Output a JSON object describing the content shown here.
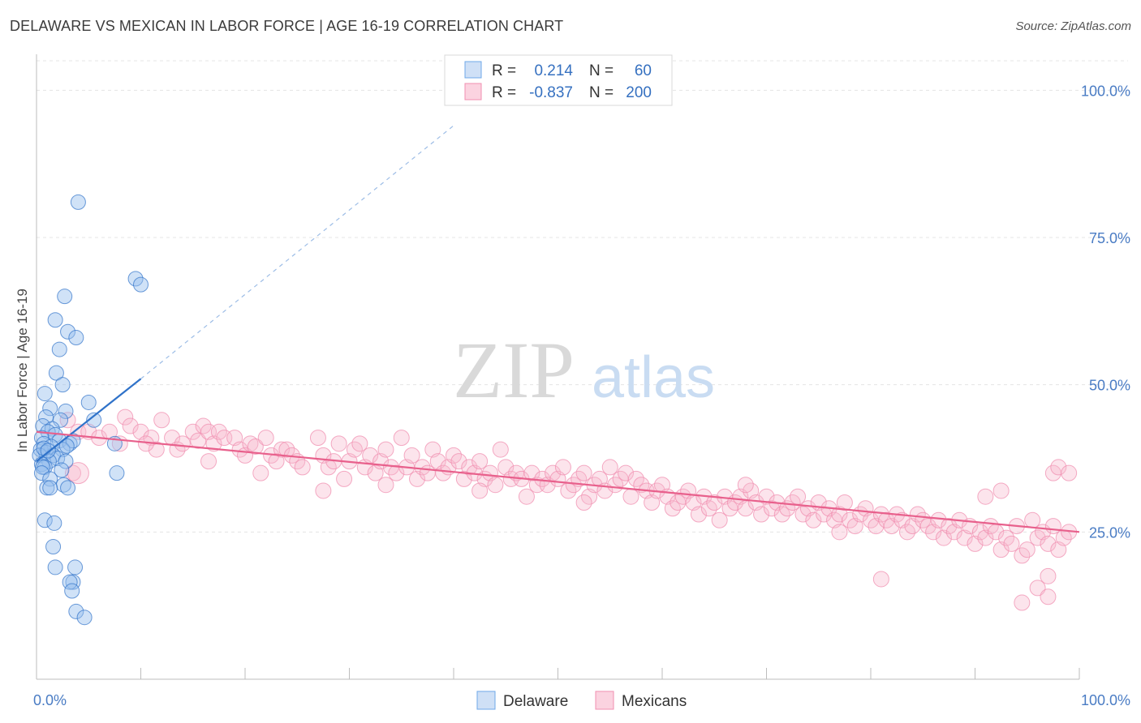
{
  "title": "DELAWARE VS MEXICAN IN LABOR FORCE | AGE 16-19 CORRELATION CHART",
  "source": "Source: ZipAtlas.com",
  "watermark": {
    "zip": "ZIP",
    "atlas": "atlas"
  },
  "colors": {
    "delaware": "#6fa8e8",
    "delaware_line": "#2f72c9",
    "mexicans": "#f08fb0",
    "mexicans_line": "#e8608c",
    "axis_labels": "#4a7cc4"
  },
  "legend_top": [
    {
      "r_label": "R =",
      "r_value": "0.214",
      "n_label": "N =",
      "n_value": "60"
    },
    {
      "r_label": "R =",
      "r_value": "-0.837",
      "n_label": "N =",
      "n_value": "200"
    }
  ],
  "chart_data": {
    "type": "scatter",
    "title": "DELAWARE VS MEXICAN IN LABOR FORCE | AGE 16-19 CORRELATION CHART",
    "xlabel": "",
    "ylabel": "In Labor Force | Age 16-19",
    "xlim": [
      0,
      100
    ],
    "ylim": [
      0,
      105
    ],
    "x_tick_labels": [
      "0.0%",
      "100.0%"
    ],
    "y_tick_labels": [
      "25.0%",
      "50.0%",
      "75.0%",
      "100.0%"
    ],
    "y_ticks": [
      25,
      50,
      75,
      100
    ],
    "grid": true,
    "legend_position": "bottom",
    "series": [
      {
        "name": "Delaware",
        "r": 0.214,
        "n": 60,
        "trend": {
          "x0": 0,
          "y0": 37.0,
          "x1": 10,
          "y1": 51.0,
          "extended_to_x": 40,
          "extended_to_y": 94
        },
        "points": [
          [
            4,
            81
          ],
          [
            9.5,
            68
          ],
          [
            10,
            67
          ],
          [
            2.7,
            65
          ],
          [
            1.8,
            61
          ],
          [
            3,
            59
          ],
          [
            3.8,
            58
          ],
          [
            2.2,
            56
          ],
          [
            1.9,
            52
          ],
          [
            2.5,
            50
          ],
          [
            0.8,
            48.5
          ],
          [
            5,
            47
          ],
          [
            1.3,
            46
          ],
          [
            2.8,
            45.5
          ],
          [
            0.9,
            44.5
          ],
          [
            2.3,
            44
          ],
          [
            5.5,
            44
          ],
          [
            0.6,
            43
          ],
          [
            1.5,
            42.5
          ],
          [
            1.1,
            42
          ],
          [
            0.5,
            41
          ],
          [
            1.8,
            41.5
          ],
          [
            2.2,
            40.5
          ],
          [
            3.2,
            40
          ],
          [
            0.7,
            40
          ],
          [
            3.5,
            40.5
          ],
          [
            1.4,
            39.5
          ],
          [
            7.5,
            40
          ],
          [
            0.4,
            39
          ],
          [
            2.5,
            39
          ],
          [
            0.9,
            38.5
          ],
          [
            1.6,
            38
          ],
          [
            0.3,
            38
          ],
          [
            2,
            37.5
          ],
          [
            1.2,
            37
          ],
          [
            0.5,
            36.5
          ],
          [
            2.8,
            37
          ],
          [
            0.8,
            36
          ],
          [
            0.6,
            36
          ],
          [
            7.7,
            35
          ],
          [
            2.4,
            35.5
          ],
          [
            0.5,
            35
          ],
          [
            1.3,
            34
          ],
          [
            2.6,
            33
          ],
          [
            3,
            32.5
          ],
          [
            1,
            32.5
          ],
          [
            1.3,
            32.5
          ],
          [
            0.8,
            27
          ],
          [
            1.7,
            26.5
          ],
          [
            1.6,
            22.5
          ],
          [
            1.8,
            19
          ],
          [
            3.7,
            19
          ],
          [
            3.5,
            16.5
          ],
          [
            3.2,
            16.5
          ],
          [
            3.4,
            15
          ],
          [
            3.8,
            11.5
          ],
          [
            4.6,
            10.5
          ],
          [
            0.7,
            39.2
          ],
          [
            1.1,
            38.8
          ],
          [
            2.9,
            39.6
          ]
        ]
      },
      {
        "name": "Mexicans",
        "r": -0.837,
        "n": 200,
        "trend": {
          "x0": 0,
          "y0": 42.0,
          "x1": 100,
          "y1": 25.0
        },
        "points": [
          [
            3,
            44
          ],
          [
            4,
            42
          ],
          [
            5,
            42
          ],
          [
            6,
            41
          ],
          [
            7,
            42
          ],
          [
            8,
            40
          ],
          [
            8.5,
            44.5
          ],
          [
            9,
            43
          ],
          [
            10,
            42
          ],
          [
            11,
            41
          ],
          [
            11.5,
            39
          ],
          [
            12,
            44
          ],
          [
            13,
            41
          ],
          [
            13.5,
            39
          ],
          [
            14,
            40
          ],
          [
            15,
            42
          ],
          [
            15.5,
            40.5
          ],
          [
            16,
            43
          ],
          [
            16.5,
            42
          ],
          [
            17,
            40
          ],
          [
            17.5,
            42
          ],
          [
            18,
            41
          ],
          [
            19,
            41
          ],
          [
            19.5,
            39
          ],
          [
            20,
            38
          ],
          [
            20.5,
            40
          ],
          [
            21,
            39.5
          ],
          [
            22,
            41
          ],
          [
            22.5,
            38
          ],
          [
            23,
            37
          ],
          [
            23.5,
            39
          ],
          [
            24,
            39
          ],
          [
            24.5,
            38
          ],
          [
            25,
            37
          ],
          [
            25.5,
            36
          ],
          [
            27,
            41
          ],
          [
            27.5,
            38
          ],
          [
            28,
            36
          ],
          [
            28.5,
            37
          ],
          [
            29,
            40
          ],
          [
            29.5,
            34
          ],
          [
            30,
            37
          ],
          [
            30.5,
            39
          ],
          [
            31,
            40
          ],
          [
            31.5,
            36
          ],
          [
            32,
            38
          ],
          [
            32.5,
            35
          ],
          [
            33,
            37
          ],
          [
            33.5,
            39
          ],
          [
            34,
            36
          ],
          [
            34.5,
            35
          ],
          [
            35,
            41
          ],
          [
            35.5,
            36
          ],
          [
            36,
            38
          ],
          [
            36.5,
            34
          ],
          [
            37,
            36
          ],
          [
            37.5,
            35
          ],
          [
            38,
            39
          ],
          [
            38.5,
            37
          ],
          [
            39,
            35
          ],
          [
            39.5,
            36
          ],
          [
            40,
            38
          ],
          [
            40.5,
            37
          ],
          [
            41,
            34
          ],
          [
            41.5,
            36
          ],
          [
            42,
            35
          ],
          [
            42.5,
            37
          ],
          [
            43,
            34
          ],
          [
            43.5,
            35
          ],
          [
            44,
            33
          ],
          [
            44.5,
            39
          ],
          [
            45,
            36
          ],
          [
            45.5,
            34
          ],
          [
            46,
            35
          ],
          [
            46.5,
            34
          ],
          [
            47,
            31
          ],
          [
            47.5,
            35
          ],
          [
            48,
            33
          ],
          [
            48.5,
            34
          ],
          [
            49,
            33
          ],
          [
            49.5,
            35
          ],
          [
            50,
            34
          ],
          [
            50.5,
            36
          ],
          [
            51,
            32
          ],
          [
            51.5,
            33
          ],
          [
            52,
            34
          ],
          [
            52.5,
            35
          ],
          [
            53,
            31
          ],
          [
            53.5,
            33
          ],
          [
            54,
            34
          ],
          [
            54.5,
            32
          ],
          [
            55,
            36
          ],
          [
            55.5,
            33
          ],
          [
            56,
            34
          ],
          [
            56.5,
            35
          ],
          [
            57,
            31
          ],
          [
            57.5,
            34
          ],
          [
            58,
            33
          ],
          [
            58.5,
            32
          ],
          [
            59,
            30
          ],
          [
            59.5,
            32
          ],
          [
            60,
            33
          ],
          [
            60.5,
            31
          ],
          [
            61,
            29
          ],
          [
            61.5,
            30
          ],
          [
            62,
            31
          ],
          [
            62.5,
            32
          ],
          [
            63,
            30
          ],
          [
            63.5,
            28
          ],
          [
            64,
            31
          ],
          [
            64.5,
            29
          ],
          [
            65,
            30
          ],
          [
            65.5,
            27
          ],
          [
            66,
            31
          ],
          [
            66.5,
            29
          ],
          [
            67,
            30
          ],
          [
            67.5,
            31
          ],
          [
            68,
            29
          ],
          [
            68.5,
            32
          ],
          [
            69,
            30
          ],
          [
            69.5,
            28
          ],
          [
            70,
            31
          ],
          [
            70.5,
            29
          ],
          [
            71,
            30
          ],
          [
            71.5,
            28
          ],
          [
            72,
            29
          ],
          [
            72.5,
            30
          ],
          [
            73,
            31
          ],
          [
            73.5,
            28
          ],
          [
            74,
            29
          ],
          [
            74.5,
            27
          ],
          [
            75,
            30
          ],
          [
            75.5,
            28
          ],
          [
            76,
            29
          ],
          [
            76.5,
            27
          ],
          [
            77,
            28
          ],
          [
            77.5,
            30
          ],
          [
            78,
            27
          ],
          [
            78.5,
            26
          ],
          [
            79,
            28
          ],
          [
            79.5,
            29
          ],
          [
            80,
            27
          ],
          [
            80.5,
            26
          ],
          [
            81,
            28
          ],
          [
            81.5,
            27
          ],
          [
            82,
            26
          ],
          [
            82.5,
            28
          ],
          [
            83,
            27
          ],
          [
            83.5,
            25
          ],
          [
            84,
            26
          ],
          [
            84.5,
            28
          ],
          [
            85,
            27
          ],
          [
            85.5,
            26
          ],
          [
            86,
            25
          ],
          [
            86.5,
            27
          ],
          [
            87,
            24
          ],
          [
            87.5,
            26
          ],
          [
            88,
            25
          ],
          [
            88.5,
            27
          ],
          [
            89,
            24
          ],
          [
            89.5,
            26
          ],
          [
            90,
            23
          ],
          [
            90.5,
            25
          ],
          [
            91,
            24
          ],
          [
            91.5,
            26
          ],
          [
            92,
            25
          ],
          [
            92.5,
            22
          ],
          [
            93,
            24
          ],
          [
            93.5,
            23
          ],
          [
            94,
            26
          ],
          [
            94.5,
            21
          ],
          [
            95,
            22
          ],
          [
            95.5,
            27
          ],
          [
            96,
            24
          ],
          [
            96.5,
            25
          ],
          [
            97,
            23
          ],
          [
            97.5,
            26
          ],
          [
            98,
            22
          ],
          [
            98.5,
            24
          ],
          [
            99,
            25
          ],
          [
            3.5,
            35
          ],
          [
            16.5,
            37
          ],
          [
            21.5,
            35
          ],
          [
            27.5,
            32
          ],
          [
            33.5,
            33
          ],
          [
            42.5,
            32
          ],
          [
            52.5,
            30
          ],
          [
            68,
            33
          ],
          [
            77,
            25
          ],
          [
            81,
            17
          ],
          [
            91,
            31
          ],
          [
            92.5,
            32
          ],
          [
            94.5,
            13
          ],
          [
            96,
            15.5
          ],
          [
            97,
            17.5
          ],
          [
            97.5,
            35
          ],
          [
            98,
            36
          ],
          [
            99,
            35
          ],
          [
            97,
            14
          ],
          [
            10.5,
            40
          ]
        ]
      }
    ]
  }
}
